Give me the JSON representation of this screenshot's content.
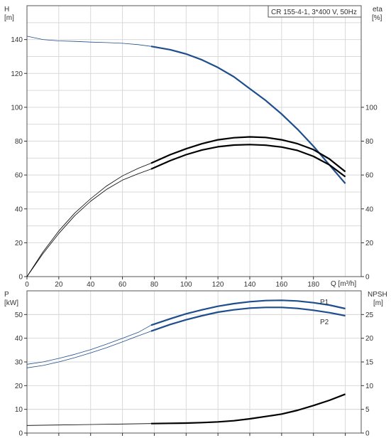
{
  "chart_data": [
    {
      "type": "line",
      "title": "CR 155-4-1, 3*400 V, 50Hz",
      "xlabel": "Q [m³/h]",
      "ylabel_left": "H",
      "ylabel_left_unit": "[m]",
      "ylabel_right": "eta",
      "ylabel_right_unit": "[%]",
      "xlim": [
        0,
        210
      ],
      "ylim": [
        0,
        160
      ],
      "x_ticks": [
        "0",
        "20",
        "40",
        "60",
        "80",
        "100",
        "120",
        "140",
        "160",
        "180"
      ],
      "y_ticks_left": [
        "0",
        "20",
        "40",
        "60",
        "80",
        "100",
        "120",
        "140"
      ],
      "y_ticks_right": [
        "0",
        "20",
        "40",
        "60",
        "80",
        "100"
      ],
      "grid": true,
      "series": [
        {
          "axis": "left",
          "color": "#1f4e8c",
          "x": [
            0,
            10,
            20,
            30,
            40,
            50,
            60,
            70,
            78,
            90,
            100,
            110,
            120,
            130,
            140,
            150,
            160,
            170,
            180,
            190,
            200
          ],
          "values": [
            142,
            140,
            139.2,
            138.9,
            138.5,
            138.2,
            137.8,
            137.0,
            136,
            134,
            131.5,
            128,
            123.5,
            118,
            111,
            104,
            96,
            87,
            77,
            66,
            55
          ]
        },
        {
          "axis": "right",
          "color": "#000000",
          "x": [
            0,
            10,
            20,
            30,
            40,
            50,
            60,
            70,
            78,
            90,
            100,
            110,
            120,
            130,
            140,
            150,
            160,
            170,
            180,
            190,
            200
          ],
          "values": [
            0,
            14.5,
            27,
            37.5,
            46,
            53.5,
            59.5,
            64,
            67,
            72,
            75.5,
            78.5,
            80.8,
            82,
            82.5,
            82.2,
            80.8,
            78.5,
            75,
            69.5,
            62
          ]
        },
        {
          "axis": "right",
          "color": "#000000",
          "x": [
            0,
            10,
            20,
            30,
            40,
            50,
            60,
            70,
            78,
            90,
            100,
            110,
            120,
            130,
            140,
            150,
            160,
            170,
            180,
            190,
            200
          ],
          "values": [
            0,
            13.5,
            25.5,
            36,
            44.5,
            51.5,
            57,
            60.8,
            63.5,
            68.5,
            72,
            74.8,
            76.7,
            77.7,
            78,
            77.6,
            76.5,
            74.5,
            71,
            66,
            59
          ]
        }
      ]
    },
    {
      "type": "line",
      "xlabel": "",
      "ylabel_left": "P",
      "ylabel_left_unit": "[kW]",
      "ylabel_right": "NPSH",
      "ylabel_right_unit": "[m]",
      "xlim": [
        0,
        210
      ],
      "ylim": [
        0,
        60
      ],
      "y_ticks_left": [
        "0",
        "10",
        "20",
        "30",
        "40",
        "50"
      ],
      "y_ticks_right": [
        "0",
        "5",
        "10",
        "15",
        "20",
        "25"
      ],
      "grid": true,
      "series": [
        {
          "name": "P1",
          "axis": "left",
          "color": "#1f4e8c",
          "x": [
            0,
            10,
            20,
            30,
            40,
            50,
            60,
            70,
            78,
            90,
            100,
            110,
            120,
            130,
            140,
            150,
            160,
            170,
            180,
            190,
            200
          ],
          "values": [
            29,
            30,
            31.5,
            33.2,
            35.2,
            37.5,
            40,
            42.5,
            45.5,
            48.2,
            50.3,
            52,
            53.5,
            54.6,
            55.4,
            55.9,
            56,
            55.7,
            55,
            54,
            52.5
          ]
        },
        {
          "name": "P2",
          "axis": "left",
          "color": "#1f4e8c",
          "x": [
            0,
            10,
            20,
            30,
            40,
            50,
            60,
            70,
            78,
            90,
            100,
            110,
            120,
            130,
            140,
            150,
            160,
            170,
            180,
            190,
            200
          ],
          "values": [
            27.5,
            28.5,
            30,
            31.8,
            33.8,
            36,
            38.5,
            41,
            43,
            45.8,
            47.8,
            49.5,
            51,
            52,
            52.7,
            53,
            53,
            52.6,
            51.8,
            50.8,
            49.5
          ]
        },
        {
          "axis": "right",
          "color": "#000000",
          "x": [
            0,
            20,
            40,
            60,
            78,
            90,
            100,
            110,
            120,
            130,
            140,
            150,
            160,
            170,
            180,
            190,
            200
          ],
          "values": [
            1.6,
            1.7,
            1.8,
            1.9,
            2.0,
            2.05,
            2.1,
            2.2,
            2.35,
            2.6,
            3.0,
            3.5,
            4.0,
            4.8,
            5.8,
            6.9,
            8.2
          ]
        }
      ]
    }
  ]
}
